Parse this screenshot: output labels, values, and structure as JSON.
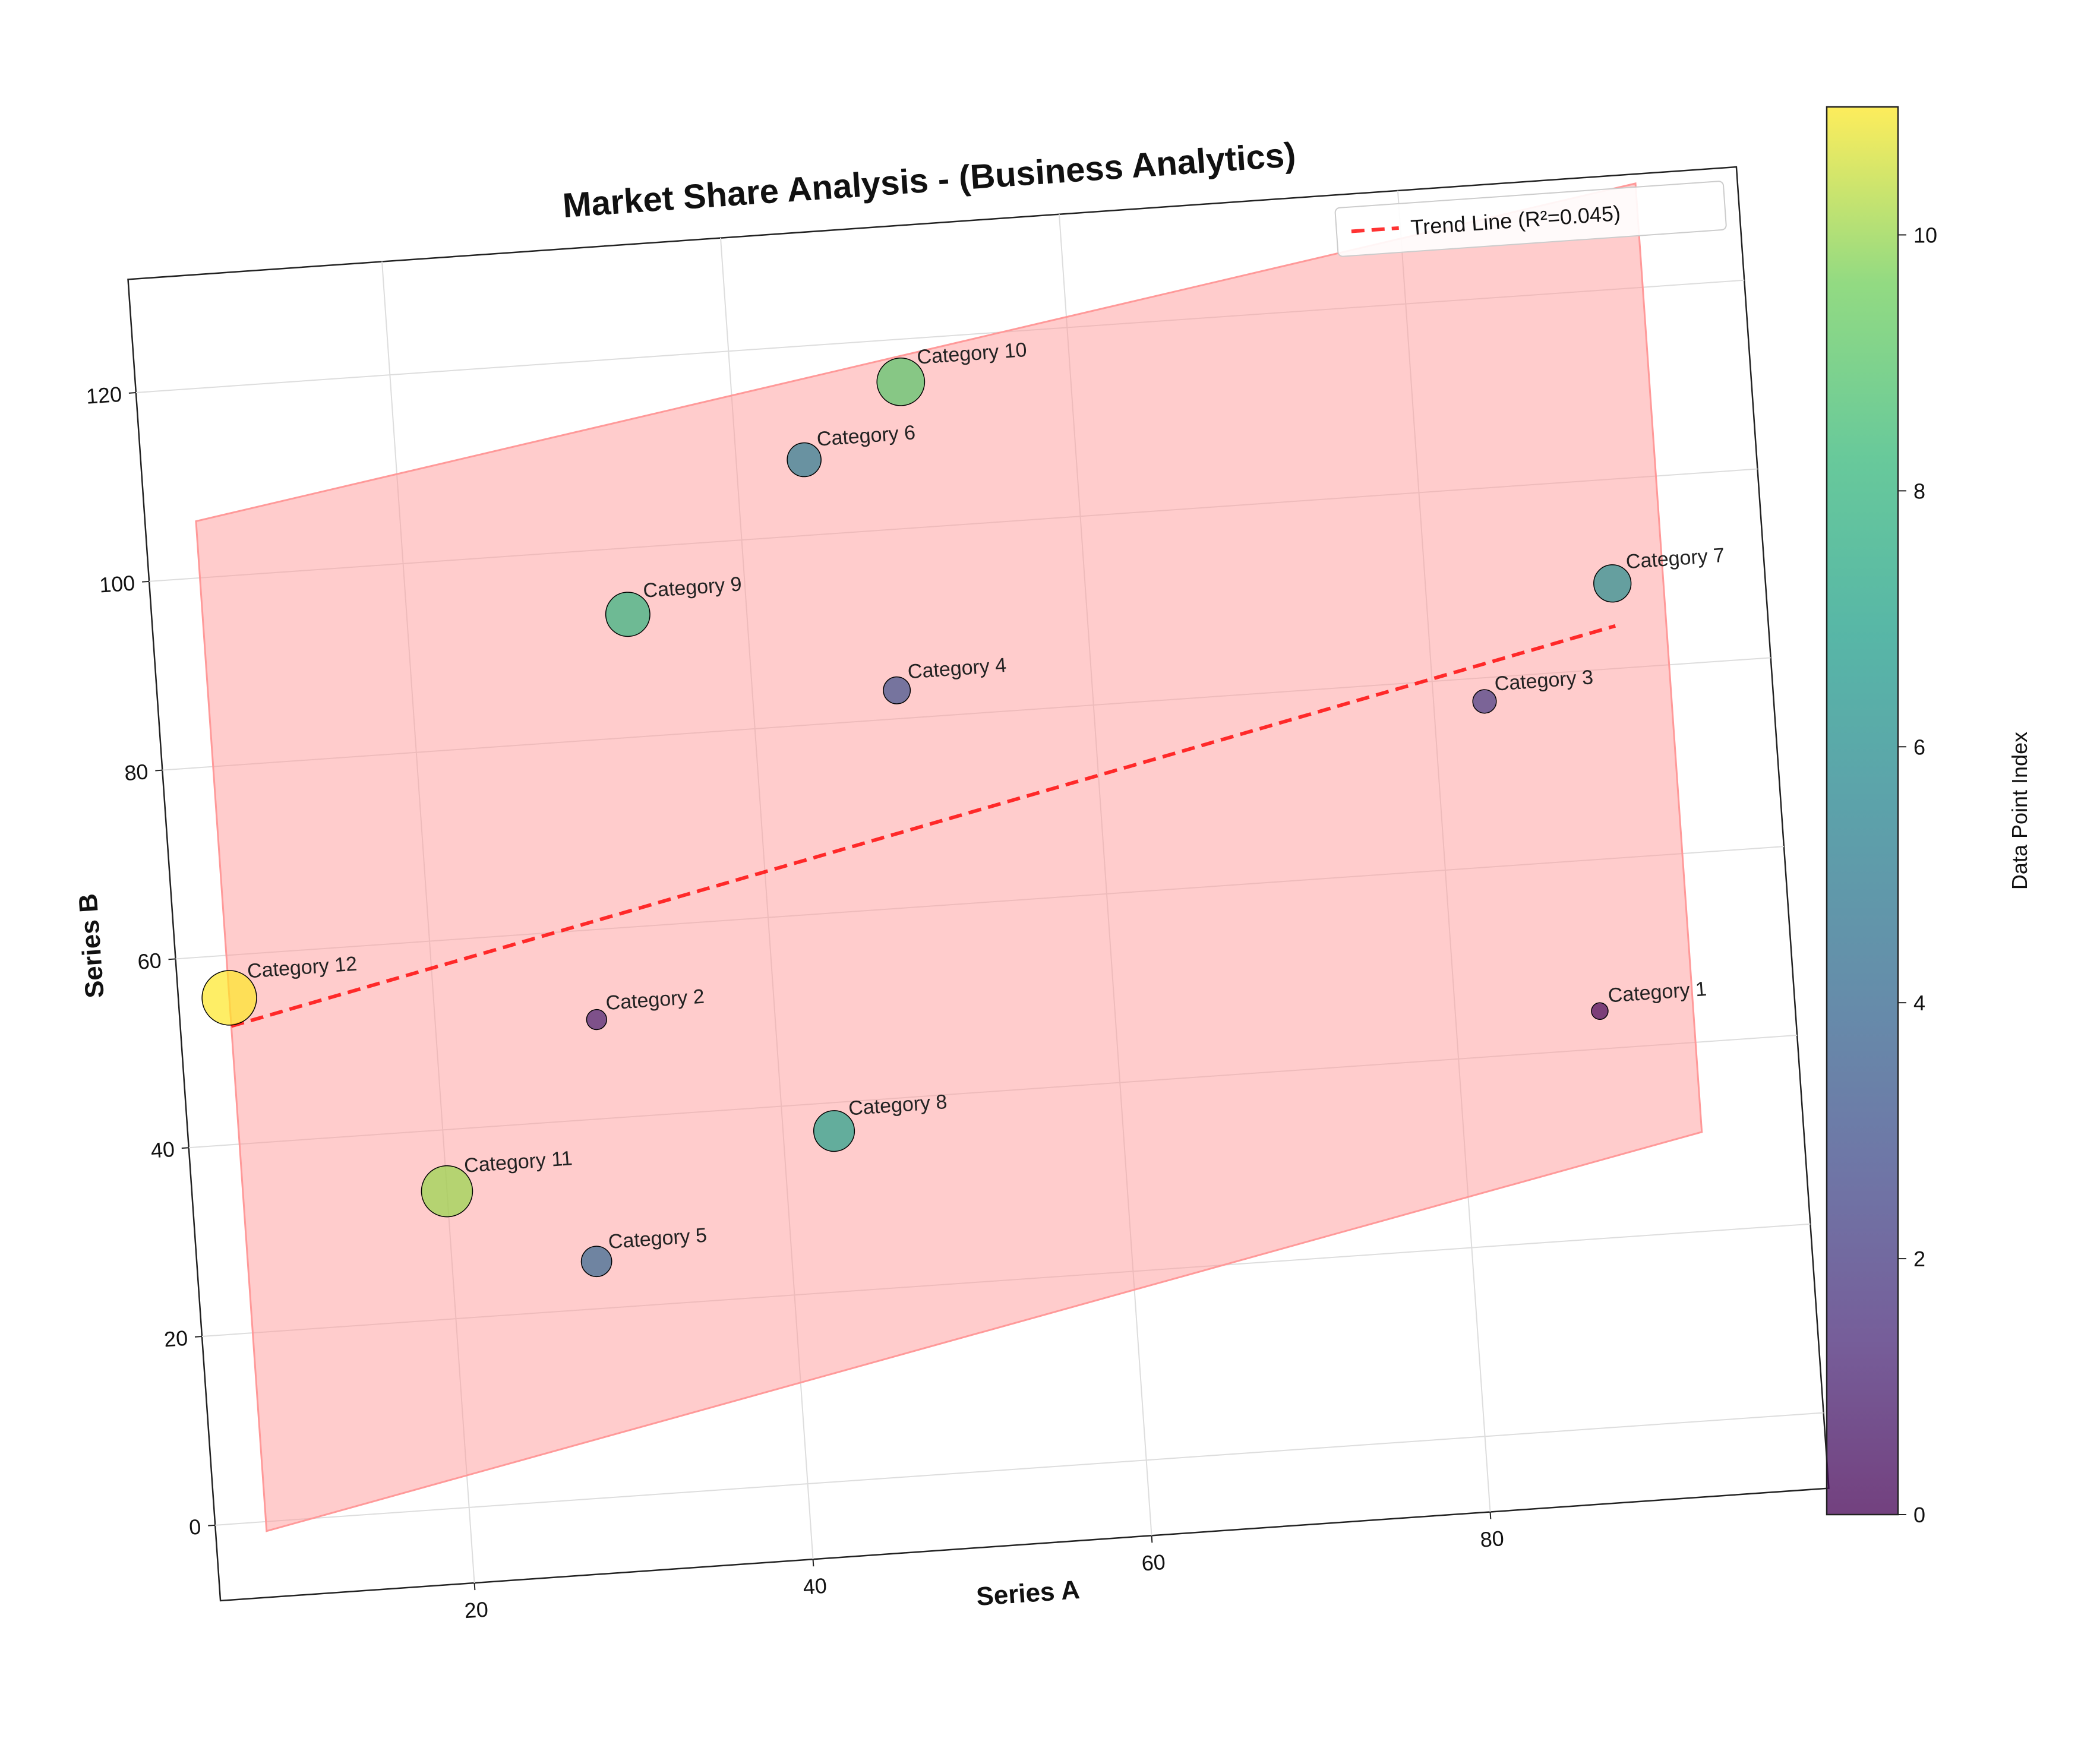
{
  "chart_data": {
    "type": "scatter",
    "title": "Market Share Analysis - (Business Analytics)",
    "xlabel": "Series A",
    "ylabel": "Series B",
    "xlim": [
      5,
      100
    ],
    "ylim": [
      -8,
      132
    ],
    "xticks": [
      20,
      40,
      60,
      80
    ],
    "yticks": [
      0,
      20,
      40,
      60,
      80,
      100,
      120
    ],
    "grid": true,
    "points": [
      {
        "label": "Category 1",
        "x": 88.5,
        "y": 44.0,
        "index": 0
      },
      {
        "label": "Category 2",
        "x": 29.5,
        "y": 50.5,
        "index": 1
      },
      {
        "label": "Category 3",
        "x": 83.0,
        "y": 77.5,
        "index": 2
      },
      {
        "label": "Category 4",
        "x": 48.5,
        "y": 83.0,
        "index": 3
      },
      {
        "label": "Category 5",
        "x": 28.5,
        "y": 25.0,
        "index": 4
      },
      {
        "label": "Category 6",
        "x": 44.0,
        "y": 108.0,
        "index": 5
      },
      {
        "label": "Category 7",
        "x": 91.0,
        "y": 89.0,
        "index": 6
      },
      {
        "label": "Category 8",
        "x": 43.0,
        "y": 37.0,
        "index": 7
      },
      {
        "label": "Category 9",
        "x": 33.0,
        "y": 93.0,
        "index": 8
      },
      {
        "label": "Category 10",
        "x": 50.0,
        "y": 115.5,
        "index": 9
      },
      {
        "label": "Category 11",
        "x": 20.0,
        "y": 33.5,
        "index": 10
      },
      {
        "label": "Category 12",
        "x": 8.0,
        "y": 55.5,
        "index": 11
      }
    ],
    "trend_line": {
      "label": "Trend Line (R²=0.045)",
      "x": [
        8,
        91
      ],
      "y": [
        52.5,
        84.5
      ],
      "color": "#ff0000"
    },
    "band": {
      "x": [
        8,
        94
      ],
      "y_lower": [
        -1,
        30.5
      ],
      "y_upper": [
        106,
        131
      ],
      "color": "#ff9999"
    },
    "legend": {
      "position": "top-right"
    },
    "colorbar": {
      "label": "Data Point Index",
      "range": [
        0,
        11
      ],
      "ticks": [
        0,
        2,
        4,
        6,
        8,
        10
      ],
      "colormap": "viridis"
    }
  }
}
